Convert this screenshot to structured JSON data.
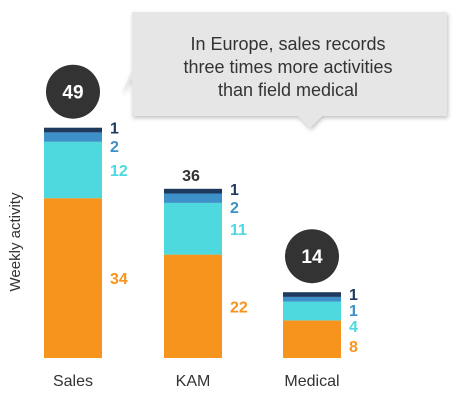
{
  "chart_data": {
    "type": "bar",
    "stacked": true,
    "ylabel": "Weekly activity",
    "categories": [
      "Sales",
      "KAM",
      "Medical"
    ],
    "series": [
      {
        "values": [
          34,
          22,
          8
        ],
        "color": "#F7941D"
      },
      {
        "values": [
          12,
          11,
          4
        ],
        "color": "#4DD9DD"
      },
      {
        "values": [
          2,
          2,
          1
        ],
        "color": "#3D91C8"
      },
      {
        "values": [
          1,
          1,
          1
        ],
        "color": "#1F3A5F"
      }
    ],
    "totals": [
      "49",
      "36",
      "14"
    ],
    "annotation": {
      "lines": [
        "In Europe, sales records",
        "three times more activities",
        "than field medical"
      ]
    },
    "grid": false,
    "legend": "none"
  }
}
